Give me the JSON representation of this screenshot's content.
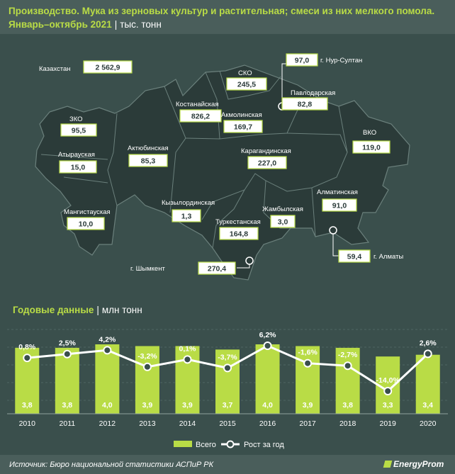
{
  "header": {
    "title_line1": "Производство. Мука из зерновых культур и растительная; смеси из них мелкого помола.",
    "title_period": "Январь–октябрь 2021",
    "title_unit": "тыс. тонн"
  },
  "map": {
    "total_label": "Казахстан",
    "total_value": "2 562,9",
    "regions": [
      {
        "name": "СКО",
        "value": "245,5"
      },
      {
        "name": "Павлодарская",
        "value": "82,8"
      },
      {
        "name": "Костанайская",
        "value": "826,2"
      },
      {
        "name": "Акмолинская",
        "value": "169,7"
      },
      {
        "name": "ЗКО",
        "value": "95,5"
      },
      {
        "name": "ВКО",
        "value": "119,0"
      },
      {
        "name": "Атырауская",
        "value": "15,0"
      },
      {
        "name": "Актюбинская",
        "value": "85,3"
      },
      {
        "name": "Карагандинская",
        "value": "227,0"
      },
      {
        "name": "Алматинская",
        "value": "91,0"
      },
      {
        "name": "Кызылординская",
        "value": "1,3"
      },
      {
        "name": "Жамбылская",
        "value": "3,0"
      },
      {
        "name": "Мангистауская",
        "value": "10,0"
      },
      {
        "name": "Туркестанская",
        "value": "164,8"
      }
    ],
    "cities": [
      {
        "name": "г. Нур-Султан",
        "value": "97,0"
      },
      {
        "name": "г. Алматы",
        "value": "59,4"
      },
      {
        "name": "г. Шымкент",
        "value": "270,4"
      }
    ]
  },
  "annual": {
    "title": "Годовые данные",
    "unit": "млн тонн"
  },
  "chart_data": {
    "type": "bar",
    "categories": [
      "2010",
      "2011",
      "2012",
      "2013",
      "2014",
      "2015",
      "2016",
      "2017",
      "2018",
      "2019",
      "2020"
    ],
    "series": [
      {
        "name": "Всего",
        "values": [
          3.8,
          3.8,
          4.0,
          3.9,
          3.9,
          3.7,
          4.0,
          3.9,
          3.8,
          3.3,
          3.4
        ],
        "labels": [
          "3,8",
          "3,8",
          "4,0",
          "3,9",
          "3,9",
          "3,7",
          "4,0",
          "3,9",
          "3,8",
          "3,3",
          "3,4"
        ]
      },
      {
        "name": "Рост за год",
        "values": [
          0.8,
          2.5,
          4.2,
          -3.2,
          0.1,
          -3.7,
          6.2,
          -1.6,
          -2.7,
          -14.0,
          2.6
        ],
        "labels": [
          "0,8%",
          "2,5%",
          "4,2%",
          "-3,2%",
          "0,1%",
          "-3,7%",
          "6,2%",
          "-1,6%",
          "-2,7%",
          "-14,0%",
          "2,6%"
        ]
      }
    ],
    "legend": [
      "Всего",
      "Рост за год"
    ],
    "legend_position": "bottom"
  },
  "colors": {
    "background": "#3a4f4c",
    "panel": "#4a5e5b",
    "map_fill": "#2b3b39",
    "accent": "#b9dc46",
    "line": "#ffffff"
  },
  "footer": {
    "source": "Источник: Бюро национальной статистики АСПиР РК",
    "logo": "EnergyProm"
  }
}
